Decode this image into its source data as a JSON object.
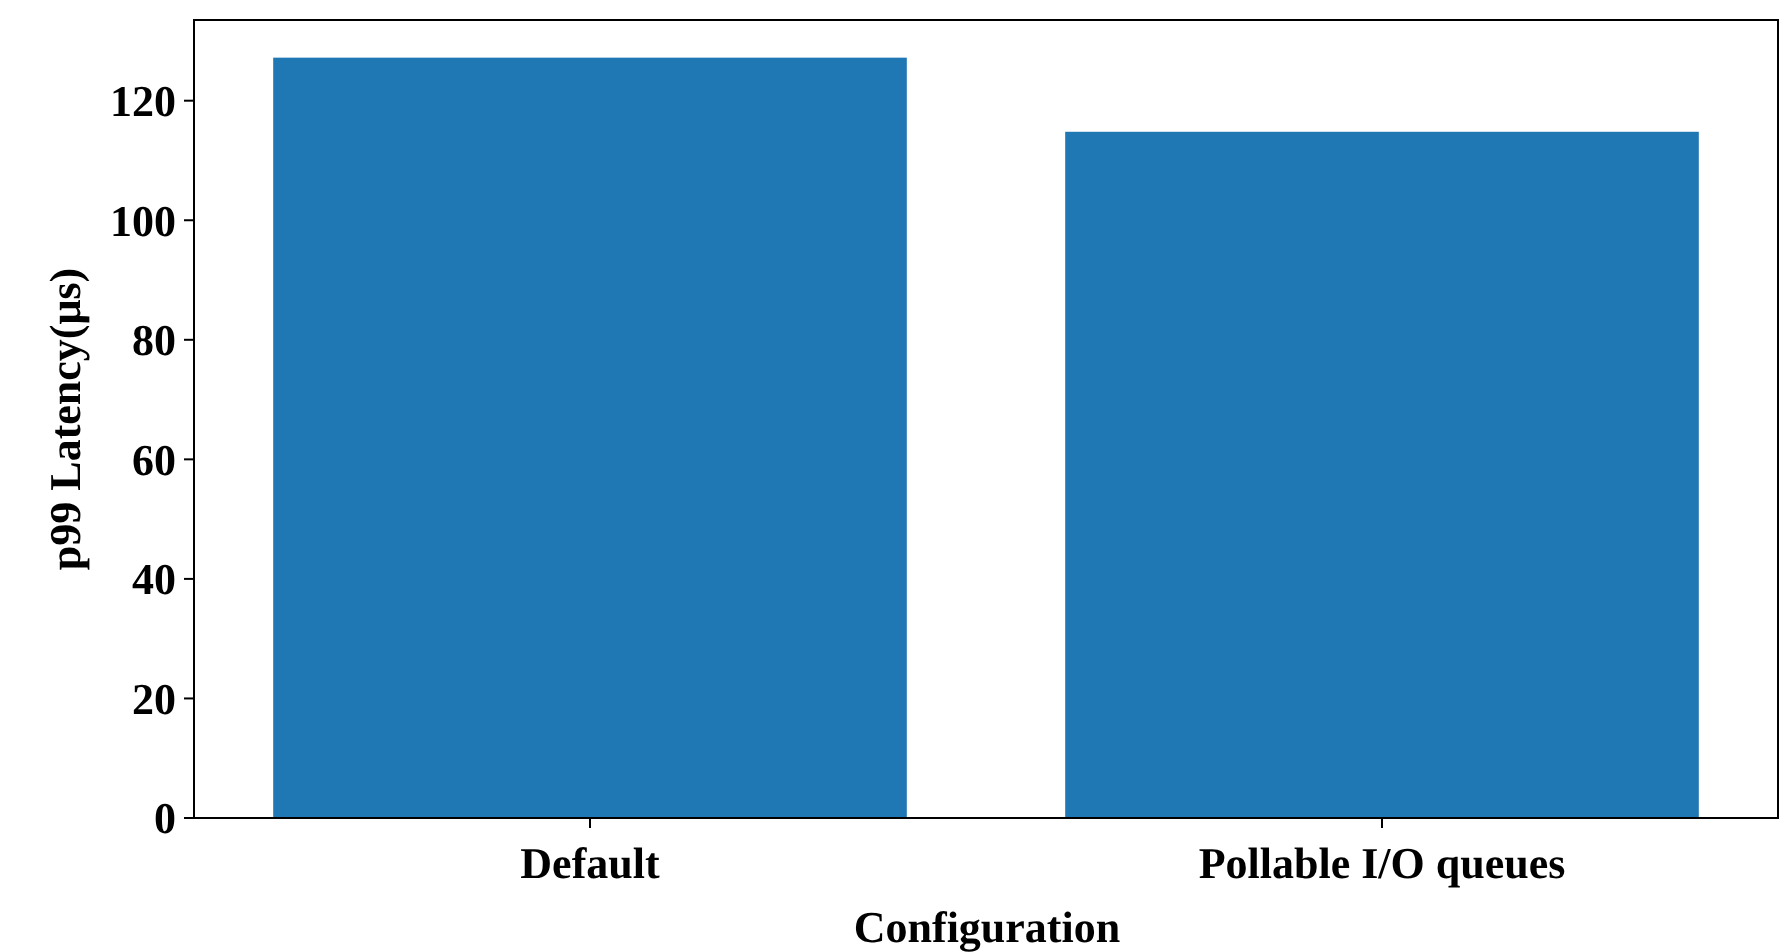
{
  "chart_data": {
    "type": "bar",
    "xlabel": "Configuration",
    "ylabel": "p99 Latency(μs)",
    "categories": [
      "Default",
      "Pollable I/O queues"
    ],
    "values": [
      127.2,
      114.8
    ],
    "color": "#1f77b4",
    "ylim": [
      0,
      133.5
    ],
    "yticks": [
      0,
      20,
      40,
      60,
      80,
      100,
      120
    ],
    "grid": false
  }
}
